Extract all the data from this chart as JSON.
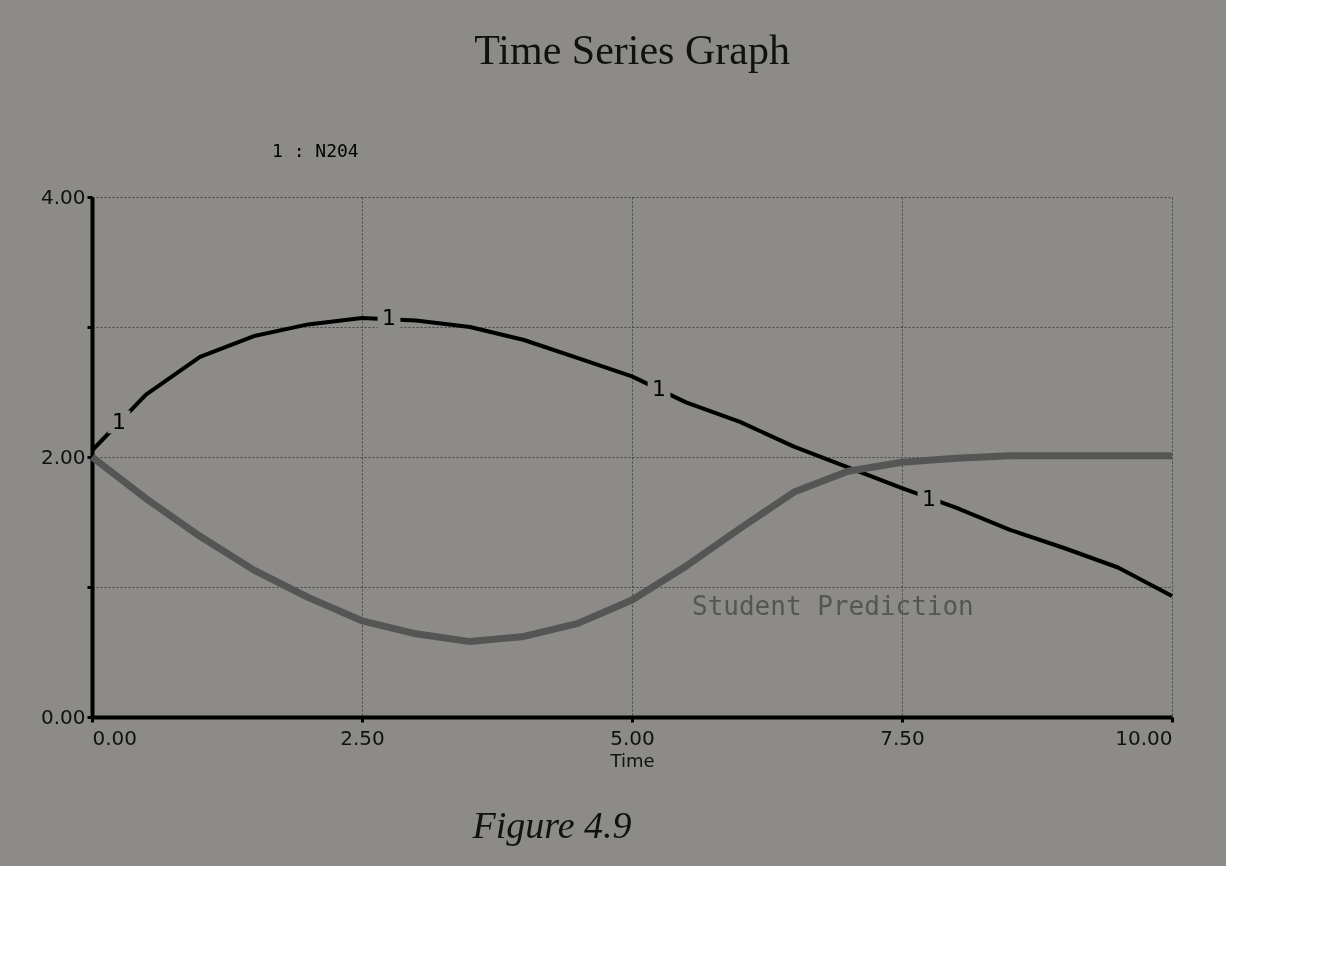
{
  "chart_data": {
    "type": "line",
    "title": "Time Series Graph",
    "xlabel": "Time",
    "x": [
      0,
      0.5,
      1,
      1.5,
      2,
      2.5,
      3,
      3.5,
      4,
      4.5,
      5,
      5.5,
      6,
      6.5,
      7,
      7.5,
      8,
      8.5,
      9,
      9.5,
      10
    ],
    "series": [
      {
        "name": "1 : N204",
        "color": "#000000",
        "values": [
          2.05,
          2.48,
          2.77,
          2.93,
          3.02,
          3.07,
          3.05,
          3.0,
          2.9,
          2.76,
          2.62,
          2.42,
          2.27,
          2.08,
          1.92,
          1.76,
          1.61,
          1.44,
          1.3,
          1.15,
          0.93
        ]
      },
      {
        "name": "Student Prediction",
        "color": "#555555",
        "values": [
          2.0,
          1.68,
          1.39,
          1.13,
          0.92,
          0.74,
          0.64,
          0.58,
          0.62,
          0.72,
          0.9,
          1.16,
          1.45,
          1.73,
          1.89,
          1.96,
          1.99,
          2.01,
          2.01,
          2.01,
          2.01
        ]
      }
    ],
    "xlim": [
      0,
      10
    ],
    "ylim": [
      0,
      4
    ],
    "xticks": [
      {
        "value": 0,
        "label": "0.00"
      },
      {
        "value": 2.5,
        "label": "2.50"
      },
      {
        "value": 5,
        "label": "5.00"
      },
      {
        "value": 7.5,
        "label": "7.50"
      },
      {
        "value": 10,
        "label": "10.00"
      }
    ],
    "yticks": [
      {
        "value": 0,
        "label": "0.00"
      },
      {
        "value": 1,
        "label": null
      },
      {
        "value": 2,
        "label": "2.00"
      },
      {
        "value": 3,
        "label": null
      },
      {
        "value": 4,
        "label": "4.00"
      }
    ],
    "grid": true,
    "marker": "none",
    "line_style": "solid",
    "annotations": [
      {
        "text": "1",
        "x": 0.25,
        "y": 2.27
      },
      {
        "text": "1",
        "x": 2.75,
        "y": 3.07
      },
      {
        "text": "1",
        "x": 5.25,
        "y": 2.52
      },
      {
        "text": "1",
        "x": 7.75,
        "y": 1.68
      },
      "Figure 4.9"
    ]
  }
}
